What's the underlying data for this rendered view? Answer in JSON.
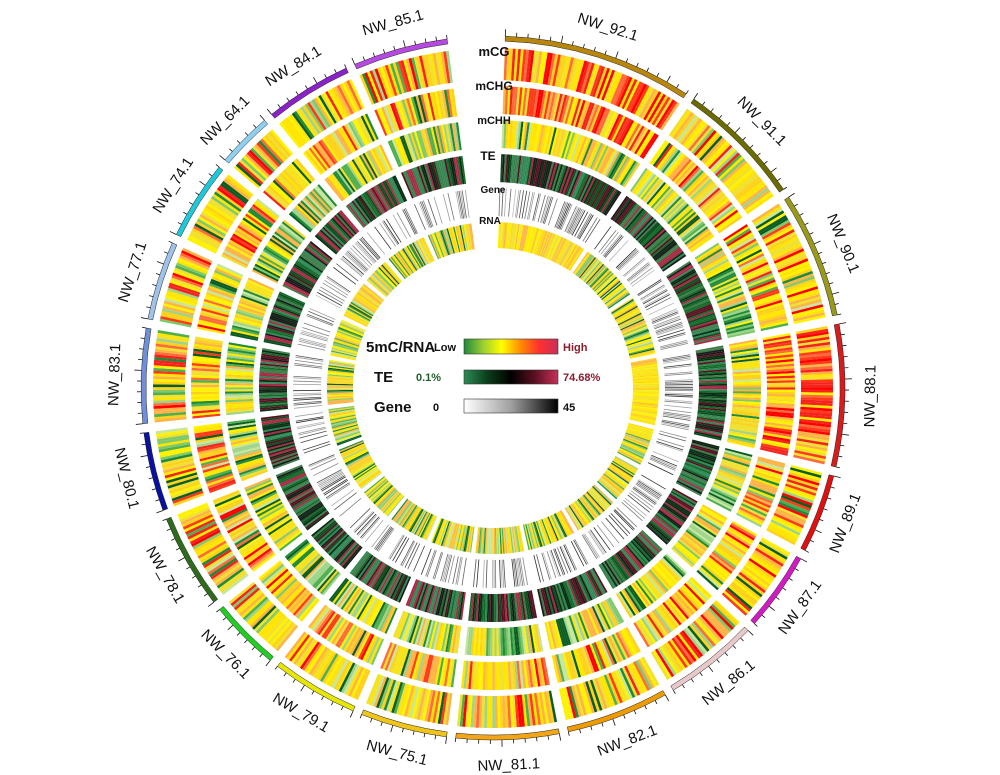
{
  "chromosomes": [
    {
      "name": "NW_92.1",
      "color": "#b8860b",
      "size": 24
    },
    {
      "name": "NW_91.1",
      "color": "#6b6b00",
      "size": 16
    },
    {
      "name": "NW_90.1",
      "color": "#9a9a1a",
      "size": 16
    },
    {
      "name": "NW_88.1",
      "color": "#d81b1b",
      "size": 18
    },
    {
      "name": "NW_89.1",
      "color": "#e01010",
      "size": 10
    },
    {
      "name": "NW_87.1",
      "color": "#d21cc3",
      "size": 10
    },
    {
      "name": "NW_86.1",
      "color": "#e8c9c9",
      "size": 12
    },
    {
      "name": "NW_82.1",
      "color": "#ee9b00",
      "size": 13
    },
    {
      "name": "NW_81.1",
      "color": "#f2a515",
      "size": 13
    },
    {
      "name": "NW_75.1",
      "color": "#f0c419",
      "size": 11
    },
    {
      "name": "NW_79.1",
      "color": "#e6e600",
      "size": 11
    },
    {
      "name": "NW_76.1",
      "color": "#22cc22",
      "size": 9
    },
    {
      "name": "NW_78.1",
      "color": "#2e6b1a",
      "size": 12
    },
    {
      "name": "NW_80.1",
      "color": "#0a10a0",
      "size": 10
    },
    {
      "name": "NW_83.1",
      "color": "#6f8fd8",
      "size": 12
    },
    {
      "name": "NW_77.1",
      "color": "#9ec2e8",
      "size": 10
    },
    {
      "name": "NW_74.1",
      "color": "#1ec8d8",
      "size": 10
    },
    {
      "name": "NW_64.1",
      "color": "#8fd0f0",
      "size": 7
    },
    {
      "name": "NW_84.1",
      "color": "#8a22c8",
      "size": 11
    },
    {
      "name": "NW_85.1",
      "color": "#b64ae0",
      "size": 12
    }
  ],
  "tracks": [
    {
      "name": "mCG",
      "type": "heat"
    },
    {
      "name": "mCHG",
      "type": "heat"
    },
    {
      "name": "mCHH",
      "type": "heat"
    },
    {
      "name": "TE",
      "type": "te"
    },
    {
      "name": "Gene",
      "type": "gene"
    },
    {
      "name": "RNA",
      "type": "heat"
    }
  ],
  "legend": [
    {
      "name": "5mC/RNA",
      "low": "Low",
      "high": "High",
      "low_color": "#111111",
      "high_color": "#8b1a2b",
      "gradient": [
        "#1e8a3a",
        "#9acd32",
        "#ffff00",
        "#ff8c00",
        "#ff3030",
        "#c8305a"
      ]
    },
    {
      "name": "TE",
      "low": "0.1%",
      "high": "74.68%",
      "low_color": "#1f5e2a",
      "high_color": "#8b1a2b",
      "gradient": [
        "#2e8b57",
        "#0b3d1a",
        "#000000",
        "#5a1020",
        "#c8305a"
      ]
    },
    {
      "name": "Gene",
      "low": "0",
      "high": "45",
      "low_color": "#111111",
      "high_color": "#111111",
      "gradient": [
        "#ffffff",
        "#a0a0a0",
        "#000000"
      ]
    }
  ]
}
